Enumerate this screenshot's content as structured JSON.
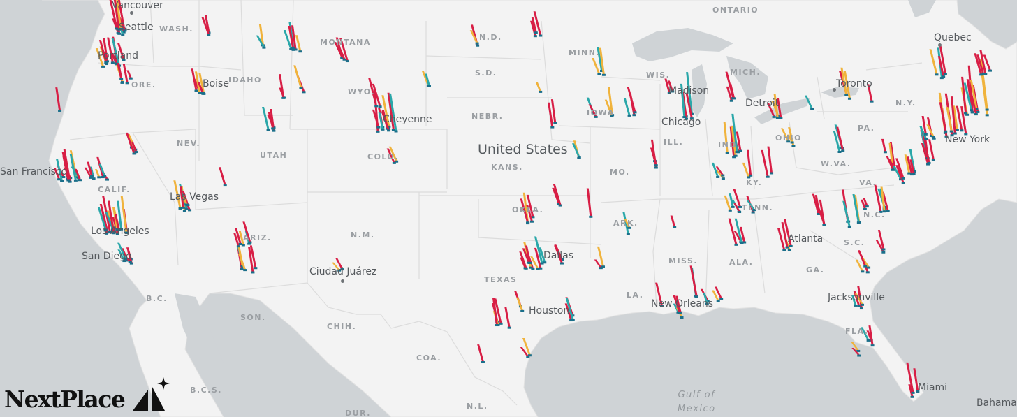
{
  "labels": {
    "country": "United States",
    "states": [
      "WASH.",
      "MONTANA",
      "IDAHO",
      "ORE.",
      "WYO.",
      "NEV.",
      "UTAH",
      "COLO.",
      "CALIF.",
      "ARIZ.",
      "N.M.",
      "KANS.",
      "NEBR.",
      "S.D.",
      "N.D.",
      "MINN.",
      "IOWA",
      "MO.",
      "OKLA.",
      "ARK.",
      "TEXAS",
      "LA.",
      "MISS.",
      "ALA.",
      "GA.",
      "S.C.",
      "N.C.",
      "TENN.",
      "KY.",
      "IND.",
      "ILL.",
      "OHIO",
      "W.VA.",
      "VA.",
      "PA.",
      "N.Y.",
      "MICH.",
      "WIS.",
      "FLA."
    ],
    "regions": [
      "ONTARIO",
      "B.C.",
      "SON.",
      "CHIH.",
      "COA.",
      "B.C.S.",
      "N.L.",
      "DUR."
    ],
    "cities": [
      "Vancouver",
      "Seattle",
      "Portland",
      "Boise",
      "San Francisco",
      "Las Vegas",
      "Los Angeles",
      "San Diego",
      "Cheyenne",
      "Ciudad Juárez",
      "Dallas",
      "Houston",
      "New Orleans",
      "Chicago",
      "Madison",
      "Detroit",
      "Toronto",
      "Quebec",
      "New York",
      "Atlanta",
      "Jacksonville",
      "Miami",
      "Bahamas"
    ],
    "water": [
      "Gulf of",
      "Mexico"
    ]
  },
  "logo": {
    "text": "NextPlace"
  },
  "colors": {
    "land": "#f3f3f3",
    "water": "#cfd3d6",
    "border": "#dcdcdc",
    "bar_high": "#d81e45",
    "bar_mid": "#f0b33c",
    "bar_low": "#2aa7a9",
    "bar_base": "#1b6f8a"
  }
}
